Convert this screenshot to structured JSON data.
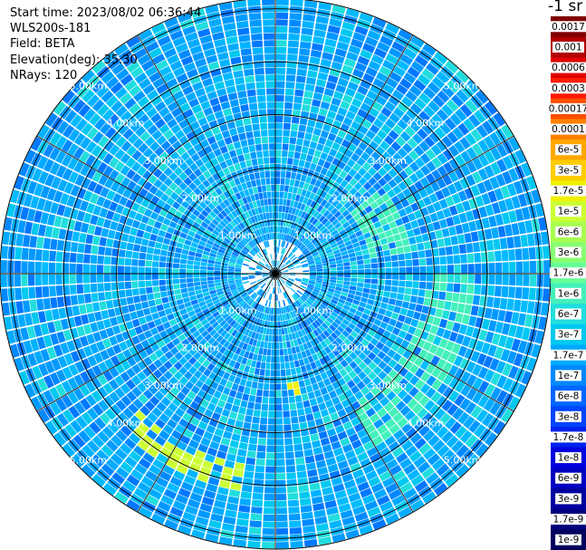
{
  "header": {
    "start_time": "Start time: 2023/08/02 06:36:44",
    "instrument": "WLS200s-181",
    "field": "Field: BETA",
    "elevation": "Elevation(deg): 35.30",
    "nrays": "NRays: 120"
  },
  "colorbar": {
    "title": "-1 sr",
    "labels": [
      "0.0017",
      "0.001",
      "0.0006",
      "0.0003",
      "0.00017",
      "0.0001",
      "6e-5",
      "3e-5",
      "1.7e-5",
      "1e-5",
      "6e-6",
      "3e-6",
      "1.7e-6",
      "1e-6",
      "6e-7",
      "3e-7",
      "1.7e-7",
      "1e-7",
      "6e-8",
      "3e-8",
      "1.7e-8",
      "1e-8",
      "6e-9",
      "3e-9",
      "1.7e-9",
      "1e-9"
    ],
    "colors": [
      "#7f0000",
      "#b00000",
      "#e00000",
      "#ff1a00",
      "#ff5000",
      "#ff8000",
      "#ffa800",
      "#ffcc00",
      "#f0f000",
      "#ccff33",
      "#a8ff50",
      "#88ff70",
      "#66ff99",
      "#44f0bb",
      "#22dddd",
      "#00c8f0",
      "#00aaff",
      "#0088ff",
      "#0066ff",
      "#0044ff",
      "#0022ee",
      "#0000dd",
      "#0000c0",
      "#0000a0",
      "#000080",
      "#00005c"
    ]
  },
  "chart_data": {
    "type": "ppi",
    "field": "BETA",
    "units": "sr-1",
    "nrays": 120,
    "range_rings_km": [
      1.0,
      2.0,
      3.0,
      4.0,
      5.0
    ],
    "ring_labels": [
      "1.00km",
      "2.00km",
      "3.00km",
      "4.00km",
      "5.00km"
    ],
    "max_range_km": 5.2,
    "azimuth_spokes_deg": [
      0,
      30,
      60,
      90,
      120,
      150,
      180,
      210,
      240,
      270,
      300,
      330
    ],
    "features": [
      {
        "azimuth_range_deg": [
          190,
          225
        ],
        "range_km": [
          3.6,
          4.2
        ],
        "level": "1e-5"
      },
      {
        "azimuth_range_deg": [
          168,
          178
        ],
        "range_km": [
          2.1,
          2.4
        ],
        "level": "1.7e-5"
      },
      {
        "azimuth_range_deg": [
          90,
          150
        ],
        "range_km": [
          2.8,
          3.8
        ],
        "level": "1e-6"
      },
      {
        "azimuth_range_deg": [
          50,
          80
        ],
        "range_km": [
          1.8,
          2.6
        ],
        "level": "1e-6"
      }
    ]
  }
}
